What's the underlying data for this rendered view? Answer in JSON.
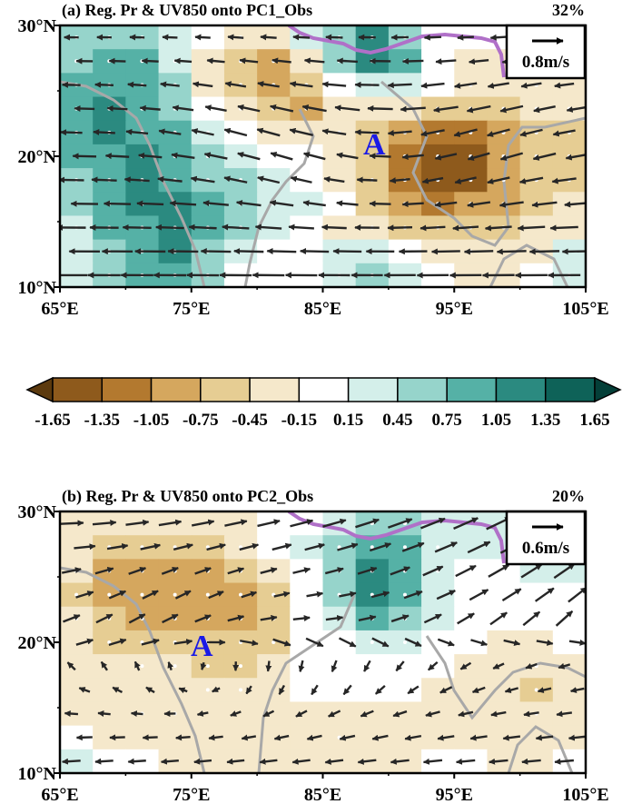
{
  "colorbar": {
    "labels": [
      "-1.65",
      "-1.35",
      "-1.05",
      "-0.75",
      "-0.45",
      "-0.15",
      "0.15",
      "0.45",
      "0.75",
      "1.05",
      "1.35",
      "1.65"
    ],
    "colors": [
      "#5c3a0e",
      "#8e5a1c",
      "#b3792f",
      "#d5a75e",
      "#e6cd93",
      "#f5e8cb",
      "#ffffff",
      "#d4efea",
      "#96d4cb",
      "#55b1a6",
      "#2b8a80",
      "#0e6258",
      "#043f38"
    ]
  },
  "chart_data": [
    {
      "type": "heatmap",
      "title": "(a) Reg. Pr & UV850 onto PC1_Obs",
      "percent": "32%",
      "ref_vector": "0.8m/s",
      "marker": "A",
      "xlim": [
        65,
        105
      ],
      "ylim": [
        10,
        30
      ],
      "xticks": [
        "65°E",
        "75°E",
        "85°E",
        "95°E",
        "105°E"
      ],
      "yticks": [
        "10°N",
        "20°N",
        "30°N"
      ],
      "field": [
        [
          0.5,
          0.7,
          0.6,
          0.2,
          -0.1,
          -0.4,
          -0.3,
          0.2,
          0.7,
          1.1,
          0.6,
          0.1,
          -0.1,
          -0.1,
          -0.2,
          0.0
        ],
        [
          0.6,
          0.9,
          0.8,
          0.4,
          -0.3,
          -0.6,
          -0.8,
          -0.2,
          0.5,
          1.2,
          0.9,
          0.1,
          -0.3,
          -0.2,
          -0.3,
          -0.1
        ],
        [
          0.8,
          1.0,
          0.9,
          0.5,
          -0.2,
          -0.7,
          -1.0,
          -0.7,
          -0.1,
          0.4,
          0.3,
          -0.1,
          -0.4,
          -0.3,
          -0.4,
          -0.3
        ],
        [
          1.0,
          1.1,
          1.0,
          0.7,
          0.1,
          -0.4,
          -0.7,
          -0.8,
          -0.4,
          -0.2,
          -0.4,
          -0.6,
          -0.7,
          -0.5,
          -0.4,
          -0.4
        ],
        [
          0.9,
          1.1,
          1.0,
          0.8,
          0.4,
          0.1,
          -0.2,
          -0.3,
          -0.4,
          -0.5,
          -0.9,
          -1.2,
          -1.1,
          -0.8,
          -0.5,
          -0.5
        ],
        [
          0.8,
          1.0,
          1.1,
          0.9,
          0.6,
          0.3,
          0.1,
          -0.1,
          -0.3,
          -0.6,
          -1.2,
          -1.6,
          -1.5,
          -1.0,
          -0.6,
          -0.7
        ],
        [
          0.7,
          0.9,
          1.1,
          1.0,
          0.7,
          0.5,
          0.3,
          0.1,
          -0.2,
          -0.6,
          -1.1,
          -1.5,
          -1.4,
          -1.0,
          -0.6,
          -0.5
        ],
        [
          0.5,
          0.8,
          1.1,
          1.1,
          0.8,
          0.6,
          0.4,
          0.2,
          -0.1,
          -0.5,
          -0.9,
          -1.1,
          -1.0,
          -0.8,
          -0.5,
          -0.3
        ],
        [
          0.4,
          0.8,
          1.0,
          1.2,
          0.9,
          0.5,
          0.3,
          0.1,
          -0.2,
          -0.4,
          -0.6,
          -0.7,
          -0.6,
          -0.5,
          -0.3,
          -0.2
        ],
        [
          0.3,
          0.7,
          0.9,
          1.1,
          0.7,
          0.3,
          0.1,
          0.0,
          0.2,
          0.3,
          0.1,
          -0.3,
          -0.4,
          -0.3,
          -0.2,
          0.3
        ],
        [
          0.2,
          0.5,
          0.8,
          0.9,
          0.5,
          0.1,
          -0.1,
          0.1,
          0.4,
          0.5,
          0.2,
          -0.1,
          -0.3,
          -0.2,
          0.1,
          0.4
        ]
      ]
    },
    {
      "type": "heatmap",
      "title": "(b) Reg. Pr & UV850 onto PC2_Obs",
      "percent": "20%",
      "ref_vector": "0.6m/s",
      "marker": "A",
      "xlim": [
        65,
        105
      ],
      "ylim": [
        10,
        30
      ],
      "xticks": [
        "65°E",
        "75°E",
        "85°E",
        "95°E",
        "105°E"
      ],
      "yticks": [
        "10°N",
        "20°N",
        "30°N"
      ],
      "field": [
        [
          -0.2,
          -0.3,
          -0.3,
          -0.3,
          -0.3,
          -0.2,
          -0.1,
          0.1,
          0.3,
          0.5,
          0.5,
          0.3,
          0.2,
          0.2,
          0.2,
          0.1
        ],
        [
          -0.3,
          -0.6,
          -0.7,
          -0.6,
          -0.6,
          -0.4,
          -0.1,
          0.2,
          0.6,
          0.9,
          0.8,
          0.4,
          0.2,
          0.2,
          0.2,
          0.2
        ],
        [
          -0.4,
          -0.8,
          -0.9,
          -0.8,
          -0.9,
          -0.7,
          -0.2,
          0.1,
          0.6,
          1.1,
          0.9,
          0.4,
          0.1,
          0.1,
          0.2,
          0.2
        ],
        [
          -0.5,
          -0.8,
          -0.9,
          -0.8,
          -0.9,
          -1.0,
          -0.5,
          0.0,
          0.5,
          1.1,
          0.8,
          0.3,
          0.1,
          0.0,
          0.1,
          0.1
        ],
        [
          -0.4,
          -0.7,
          -0.8,
          -0.8,
          -0.8,
          -0.9,
          -0.6,
          -0.1,
          0.3,
          0.8,
          0.6,
          0.2,
          0.0,
          -0.1,
          -0.1,
          0.0
        ],
        [
          -0.3,
          -0.5,
          -0.6,
          -0.6,
          -0.6,
          -0.7,
          -0.5,
          -0.1,
          0.1,
          0.4,
          0.4,
          0.1,
          -0.1,
          -0.2,
          -0.3,
          -0.1
        ],
        [
          -0.2,
          -0.3,
          -0.4,
          -0.4,
          -0.5,
          -0.5,
          -0.3,
          -0.1,
          0.0,
          0.1,
          0.1,
          -0.1,
          -0.2,
          -0.3,
          -0.4,
          -0.2
        ],
        [
          -0.2,
          -0.3,
          -0.3,
          -0.3,
          -0.4,
          -0.4,
          -0.3,
          -0.1,
          -0.1,
          -0.1,
          -0.1,
          -0.2,
          -0.2,
          -0.3,
          -0.5,
          -0.3
        ],
        [
          -0.2,
          -0.3,
          -0.4,
          -0.4,
          -0.3,
          -0.2,
          -0.2,
          -0.2,
          -0.3,
          -0.3,
          -0.2,
          -0.2,
          -0.3,
          -0.3,
          -0.4,
          -0.3
        ],
        [
          -0.1,
          -0.2,
          -0.3,
          -0.3,
          -0.3,
          -0.2,
          -0.2,
          -0.3,
          -0.4,
          -0.3,
          -0.2,
          -0.2,
          -0.2,
          -0.2,
          -0.3,
          -0.2
        ],
        [
          0.2,
          0.1,
          -0.1,
          -0.2,
          -0.2,
          -0.2,
          -0.2,
          -0.3,
          -0.3,
          -0.2,
          -0.2,
          -0.1,
          -0.1,
          -0.2,
          -0.2,
          -0.1
        ]
      ]
    }
  ]
}
